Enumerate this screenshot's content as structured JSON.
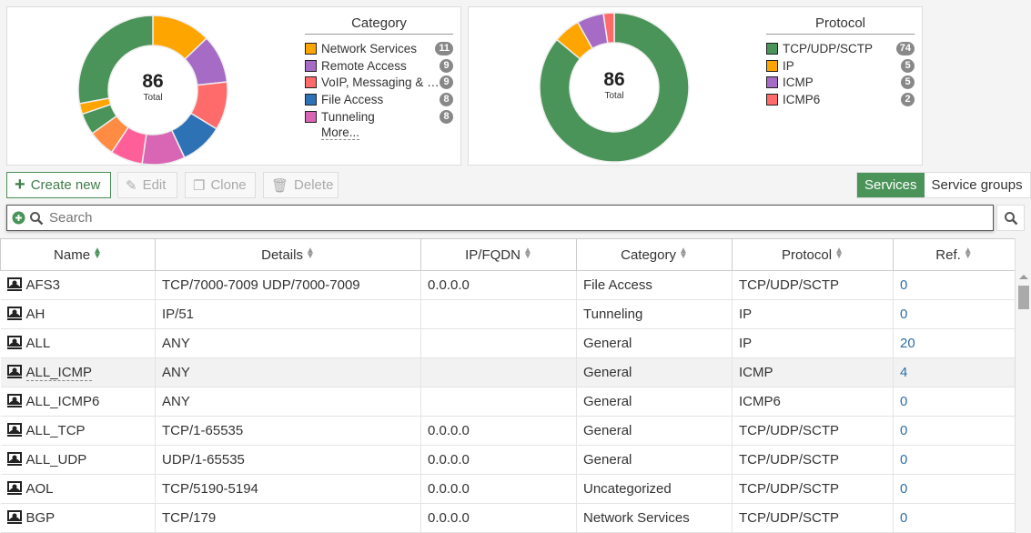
{
  "category_chart": {
    "title": "Category",
    "total": 86,
    "total_label": "Total",
    "more_label": "More...",
    "legend": [
      {
        "label": "Network Services",
        "count": "11",
        "color": "#ffa500"
      },
      {
        "label": "Remote Access",
        "count": "9",
        "color": "#a66bc5"
      },
      {
        "label": "VoIP, Messaging & Other Applications",
        "count": "9",
        "color": "#ff6b6b"
      },
      {
        "label": "File Access",
        "count": "8",
        "color": "#2c72b5"
      },
      {
        "label": "Tunneling",
        "count": "8",
        "color": "#d966b5"
      }
    ],
    "segments": [
      {
        "value": 11,
        "color": "#ffa500"
      },
      {
        "value": 9,
        "color": "#a66bc5"
      },
      {
        "value": 9,
        "color": "#ff6b6b"
      },
      {
        "value": 8,
        "color": "#2c72b5"
      },
      {
        "value": 8,
        "color": "#d966b5"
      },
      {
        "value": 6,
        "color": "#ff5f99"
      },
      {
        "value": 5,
        "color": "#ff8c42"
      },
      {
        "value": 4,
        "color": "#4a9359"
      },
      {
        "value": 2,
        "color": "#ffa500"
      },
      {
        "value": 24,
        "color": "#4a9359"
      }
    ]
  },
  "protocol_chart": {
    "title": "Protocol",
    "total": 86,
    "total_label": "Total",
    "legend": [
      {
        "label": "TCP/UDP/SCTP",
        "count": "74",
        "color": "#4a9359"
      },
      {
        "label": "IP",
        "count": "5",
        "color": "#ffa500"
      },
      {
        "label": "ICMP",
        "count": "5",
        "color": "#a66bc5"
      },
      {
        "label": "ICMP6",
        "count": "2",
        "color": "#ff6b6b"
      }
    ]
  },
  "toolbar": {
    "create": "Create new",
    "edit": "Edit",
    "clone": "Clone",
    "delete": "Delete",
    "services": "Services",
    "groups": "Service groups"
  },
  "search": {
    "placeholder": "Search"
  },
  "table": {
    "columns": [
      "Name",
      "Details",
      "IP/FQDN",
      "Category",
      "Protocol",
      "Ref."
    ],
    "rows": [
      [
        "AFS3",
        "TCP/7000-7009 UDP/7000-7009",
        "0.0.0.0",
        "File Access",
        "TCP/UDP/SCTP",
        "0"
      ],
      [
        "AH",
        "IP/51",
        "",
        "Tunneling",
        "IP",
        "0"
      ],
      [
        "ALL",
        "ANY",
        "",
        "General",
        "IP",
        "20"
      ],
      [
        "ALL_ICMP",
        "ANY",
        "",
        "General",
        "ICMP",
        "4"
      ],
      [
        "ALL_ICMP6",
        "ANY",
        "",
        "General",
        "ICMP6",
        "0"
      ],
      [
        "ALL_TCP",
        "TCP/1-65535",
        "0.0.0.0",
        "General",
        "TCP/UDP/SCTP",
        "0"
      ],
      [
        "ALL_UDP",
        "UDP/1-65535",
        "0.0.0.0",
        "General",
        "TCP/UDP/SCTP",
        "0"
      ],
      [
        "AOL",
        "TCP/5190-5194",
        "0.0.0.0",
        "Uncategorized",
        "TCP/UDP/SCTP",
        "0"
      ],
      [
        "BGP",
        "TCP/179",
        "0.0.0.0",
        "Network Services",
        "TCP/UDP/SCTP",
        "0"
      ]
    ]
  }
}
